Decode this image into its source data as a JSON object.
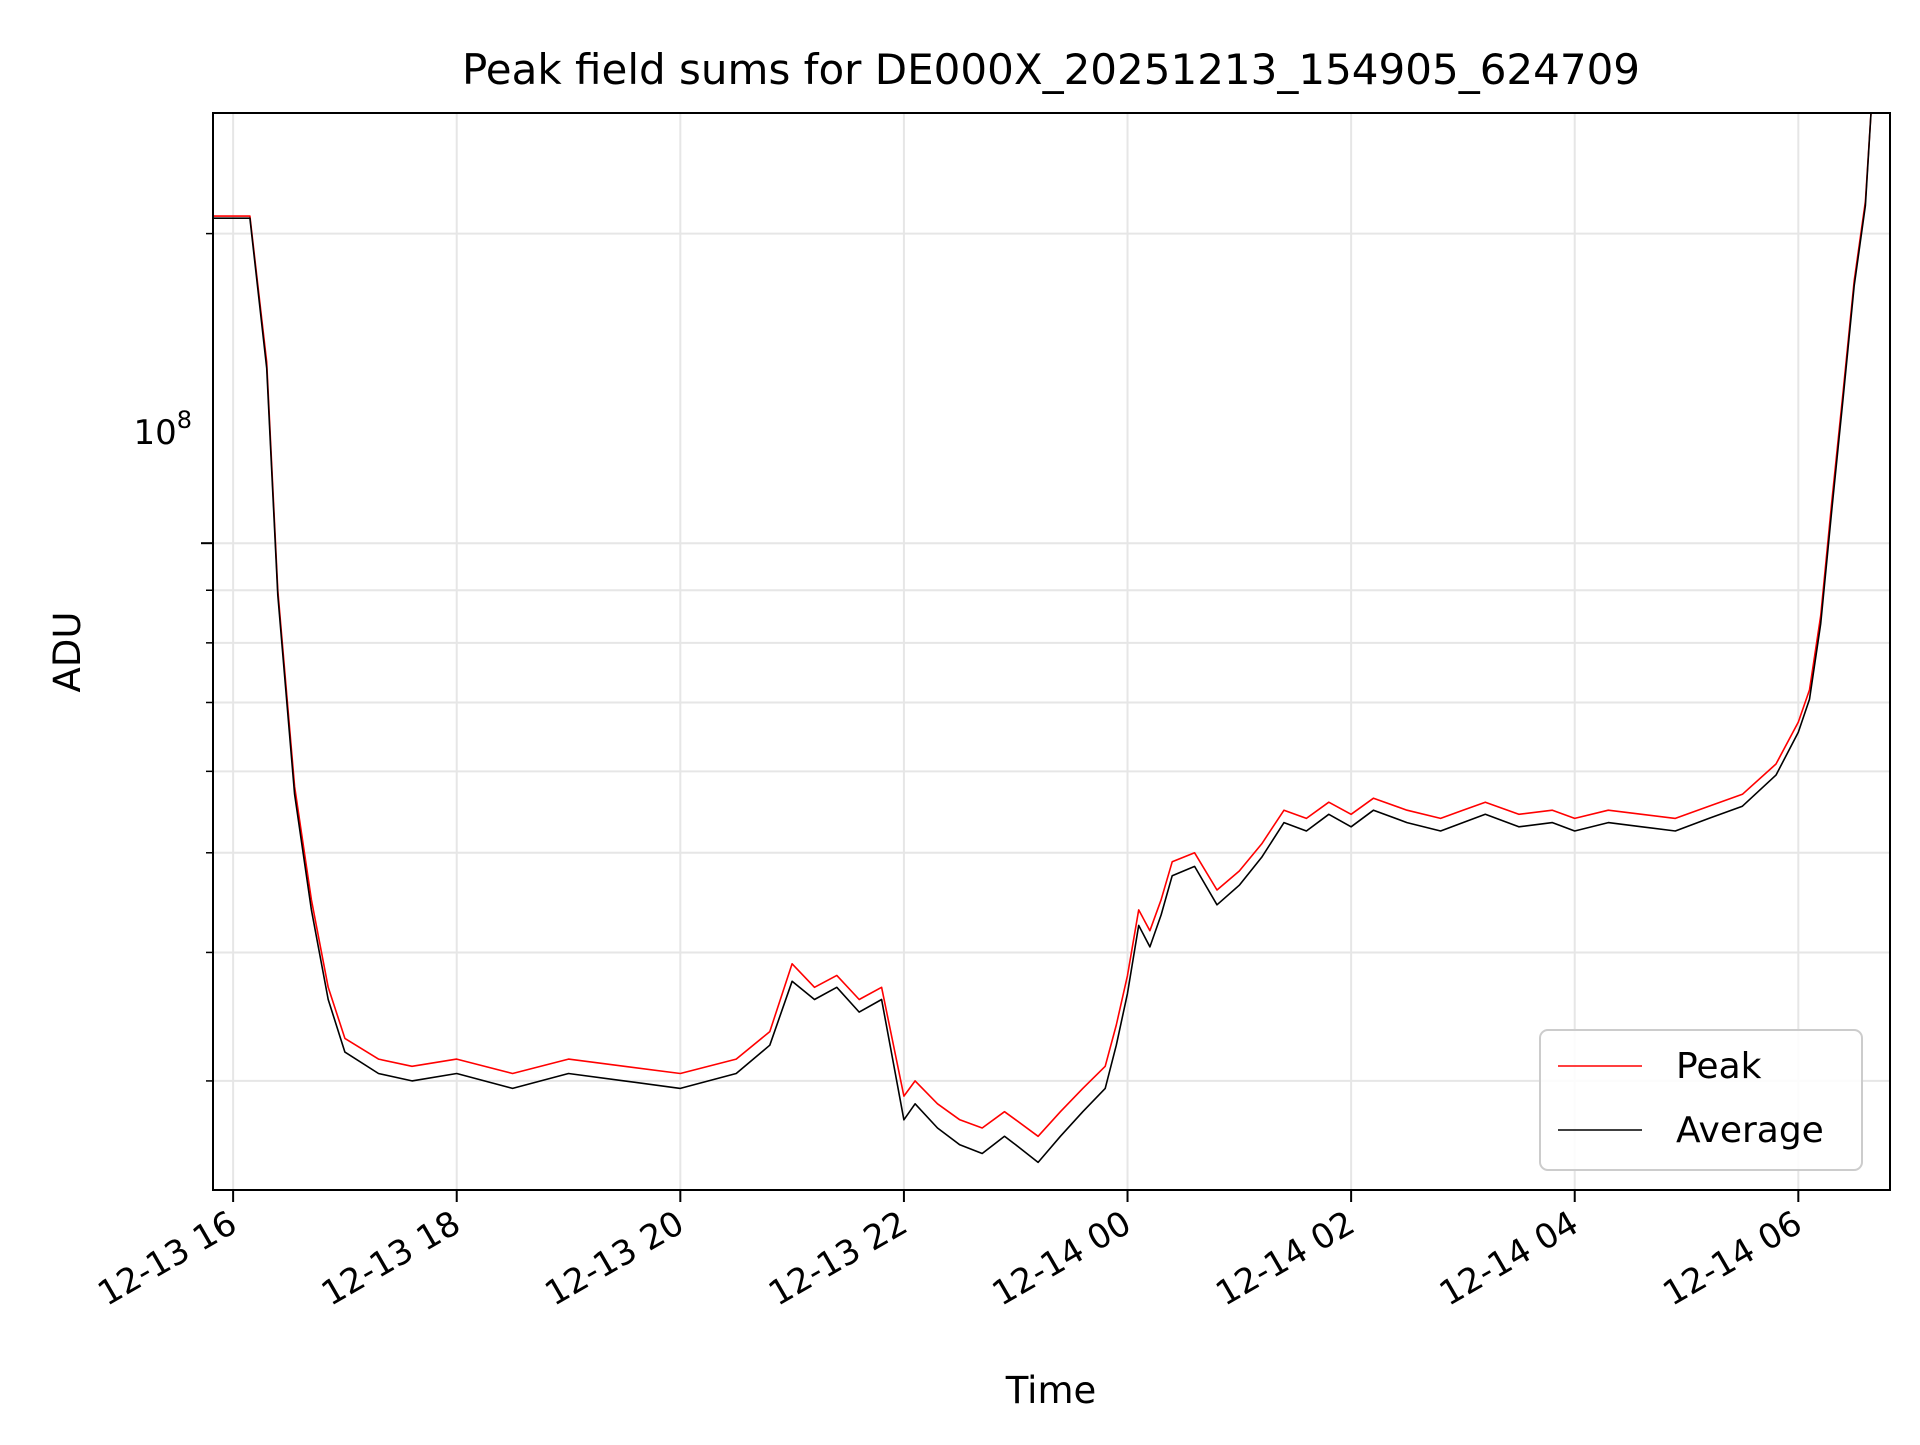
{
  "chart_data": {
    "type": "line",
    "title": "Peak field sums for DE000X_20251213_154905_624709",
    "xlabel": "Time",
    "ylabel": "ADU",
    "y_scale": "log",
    "y_major_tick_label": "10",
    "y_major_tick_exponent": "8",
    "ylim": [
      23500000,
      262000000
    ],
    "xlim_hours": [
      -0.18,
      14.82
    ],
    "x_tick_hours": [
      0,
      2,
      4,
      6,
      8,
      10,
      12,
      14
    ],
    "x_tick_labels": [
      "12-13 16",
      "12-13 18",
      "12-13 20",
      "12-13 22",
      "12-14 00",
      "12-14 02",
      "12-14 04",
      "12-14 06"
    ],
    "y_minor_ticks": [
      30000000,
      40000000,
      50000000,
      60000000,
      70000000,
      80000000,
      90000000,
      200000000
    ],
    "grid": true,
    "legend_position": "lower-right",
    "colors": {
      "peak": "#ff0000",
      "average": "#000000",
      "grid": "#e6e6e6"
    },
    "series": [
      {
        "name": "Peak",
        "color": "#ff0000",
        "x_hours": [
          -0.18,
          0.15,
          0.3,
          0.4,
          0.55,
          0.7,
          0.85,
          1.0,
          1.3,
          1.6,
          2.0,
          2.5,
          3.0,
          3.5,
          4.0,
          4.5,
          4.8,
          5.0,
          5.2,
          5.4,
          5.6,
          5.8,
          6.0,
          6.1,
          6.3,
          6.5,
          6.7,
          6.9,
          7.0,
          7.2,
          7.4,
          7.6,
          7.8,
          7.9,
          8.0,
          8.1,
          8.2,
          8.3,
          8.4,
          8.6,
          8.8,
          9.0,
          9.2,
          9.4,
          9.6,
          9.8,
          10.0,
          10.2,
          10.5,
          10.8,
          11.0,
          11.2,
          11.5,
          11.8,
          12.0,
          12.3,
          12.6,
          12.9,
          13.2,
          13.5,
          13.8,
          14.0,
          14.1,
          14.2,
          14.3,
          14.4,
          14.5,
          14.6,
          14.65,
          14.82
        ],
        "values": [
          208000000,
          208000000,
          150000000,
          90000000,
          58000000,
          45000000,
          37000000,
          33000000,
          31500000,
          31000000,
          31500000,
          30500000,
          31500000,
          31000000,
          30500000,
          31500000,
          33500000,
          39000000,
          37000000,
          38000000,
          36000000,
          37000000,
          29000000,
          30000000,
          28500000,
          27500000,
          27000000,
          28000000,
          27500000,
          26500000,
          28000000,
          29500000,
          31000000,
          34000000,
          38000000,
          44000000,
          42000000,
          45000000,
          49000000,
          50000000,
          46000000,
          48000000,
          51000000,
          55000000,
          54000000,
          56000000,
          54500000,
          56500000,
          55000000,
          54000000,
          55000000,
          56000000,
          54500000,
          55000000,
          54000000,
          55000000,
          54500000,
          54000000,
          55500000,
          57000000,
          61000000,
          67000000,
          72000000,
          85000000,
          110000000,
          140000000,
          180000000,
          215000000,
          262000000,
          262000000
        ]
      },
      {
        "name": "Average",
        "color": "#000000",
        "x_hours": [
          -0.18,
          0.15,
          0.3,
          0.4,
          0.55,
          0.7,
          0.85,
          1.0,
          1.3,
          1.6,
          2.0,
          2.5,
          3.0,
          3.5,
          4.0,
          4.5,
          4.8,
          5.0,
          5.2,
          5.4,
          5.6,
          5.8,
          6.0,
          6.1,
          6.3,
          6.5,
          6.7,
          6.9,
          7.0,
          7.2,
          7.4,
          7.6,
          7.8,
          7.9,
          8.0,
          8.1,
          8.2,
          8.3,
          8.4,
          8.6,
          8.8,
          9.0,
          9.2,
          9.4,
          9.6,
          9.8,
          10.0,
          10.2,
          10.5,
          10.8,
          11.0,
          11.2,
          11.5,
          11.8,
          12.0,
          12.3,
          12.6,
          12.9,
          13.2,
          13.5,
          13.8,
          14.0,
          14.1,
          14.2,
          14.3,
          14.4,
          14.5,
          14.6,
          14.65,
          14.82
        ],
        "values": [
          207000000,
          207000000,
          148000000,
          89000000,
          57000000,
          44000000,
          36000000,
          32000000,
          30500000,
          30000000,
          30500000,
          29500000,
          30500000,
          30000000,
          29500000,
          30500000,
          32500000,
          37500000,
          36000000,
          37000000,
          35000000,
          36000000,
          27500000,
          28500000,
          27000000,
          26000000,
          25500000,
          26500000,
          26000000,
          25000000,
          26500000,
          28000000,
          29500000,
          32500000,
          36500000,
          42500000,
          40500000,
          43500000,
          47500000,
          48500000,
          44500000,
          46500000,
          49500000,
          53500000,
          52500000,
          54500000,
          53000000,
          55000000,
          53500000,
          52500000,
          53500000,
          54500000,
          53000000,
          53500000,
          52500000,
          53500000,
          53000000,
          52500000,
          54000000,
          55500000,
          59500000,
          65500000,
          70500000,
          83500000,
          108000000,
          138000000,
          178000000,
          213000000,
          262000000,
          262000000
        ]
      }
    ]
  }
}
